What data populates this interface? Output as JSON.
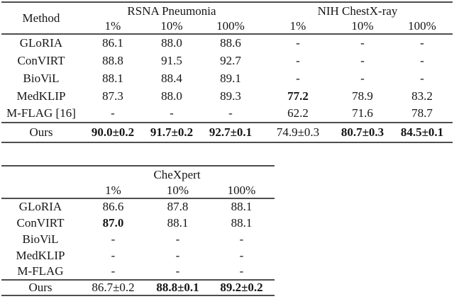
{
  "table1": {
    "method_header": "Method",
    "groups": [
      {
        "label": "RSNA Pneumonia"
      },
      {
        "label": "NIH ChestX-ray"
      }
    ],
    "subheaders": [
      "1%",
      "10%",
      "100%",
      "1%",
      "10%",
      "100%"
    ],
    "rows": [
      {
        "method": "GLoRIA",
        "cells": [
          {
            "v": "86.1"
          },
          {
            "v": "88.0"
          },
          {
            "v": "88.6"
          },
          {
            "v": "-"
          },
          {
            "v": "-"
          },
          {
            "v": "-"
          }
        ]
      },
      {
        "method": "ConVIRT",
        "cells": [
          {
            "v": "88.8"
          },
          {
            "v": "91.5"
          },
          {
            "v": "92.7"
          },
          {
            "v": "-"
          },
          {
            "v": "-"
          },
          {
            "v": "-"
          }
        ]
      },
      {
        "method": "BioViL",
        "cells": [
          {
            "v": "88.1"
          },
          {
            "v": "88.4"
          },
          {
            "v": "89.1"
          },
          {
            "v": "-"
          },
          {
            "v": "-"
          },
          {
            "v": "-"
          }
        ]
      },
      {
        "method": "MedKLIP",
        "cells": [
          {
            "v": "87.3"
          },
          {
            "v": "88.0"
          },
          {
            "v": "89.3"
          },
          {
            "v": "77.2",
            "b": true
          },
          {
            "v": "78.9"
          },
          {
            "v": "83.2"
          }
        ]
      },
      {
        "method": "M-FLAG [16]",
        "cells": [
          {
            "v": "-"
          },
          {
            "v": "-"
          },
          {
            "v": "-"
          },
          {
            "v": "62.2"
          },
          {
            "v": "71.6"
          },
          {
            "v": "78.7"
          }
        ]
      }
    ],
    "ours_row": {
      "method": "Ours",
      "cells": [
        {
          "v": "90.0±0.2",
          "b": true
        },
        {
          "v": "91.7±0.2",
          "b": true
        },
        {
          "v": "92.7±0.1",
          "b": true
        },
        {
          "v": "74.9±0.3"
        },
        {
          "v": "80.7±0.3",
          "b": true
        },
        {
          "v": "84.5±0.1",
          "b": true
        }
      ]
    }
  },
  "table2": {
    "method_header": "",
    "groups": [
      {
        "label": "CheXpert"
      }
    ],
    "subheaders": [
      "1%",
      "10%",
      "100%"
    ],
    "rows": [
      {
        "method": "GLoRIA",
        "cells": [
          {
            "v": "86.6"
          },
          {
            "v": "87.8"
          },
          {
            "v": "88.1"
          }
        ]
      },
      {
        "method": "ConVIRT",
        "cells": [
          {
            "v": "87.0",
            "b": true
          },
          {
            "v": "88.1"
          },
          {
            "v": "88.1"
          }
        ]
      },
      {
        "method": "BioViL",
        "cells": [
          {
            "v": "-"
          },
          {
            "v": "-"
          },
          {
            "v": "-"
          }
        ]
      },
      {
        "method": "MedKLIP",
        "cells": [
          {
            "v": "-"
          },
          {
            "v": "-"
          },
          {
            "v": "-"
          }
        ]
      },
      {
        "method": "M-FLAG",
        "cells": [
          {
            "v": "-"
          },
          {
            "v": "-"
          },
          {
            "v": "-"
          }
        ]
      }
    ],
    "ours_row": {
      "method": "Ours",
      "cells": [
        {
          "v": "86.7±0.2"
        },
        {
          "v": "88.8±0.1",
          "b": true
        },
        {
          "v": "89.2±0.2",
          "b": true
        }
      ]
    }
  }
}
